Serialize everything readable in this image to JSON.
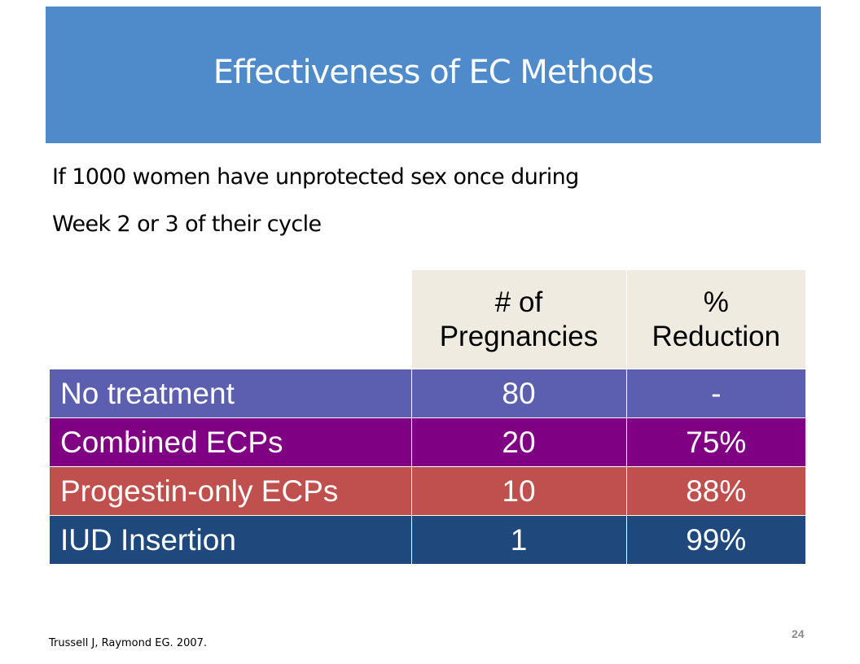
{
  "slide": {
    "title": "Effectiveness of EC Methods",
    "subtitle_lines": [
      "If 1000 women have unprotected sex once during",
      "Week 2 or 3 of their cycle"
    ],
    "table": {
      "header": {
        "col2_lines": [
          "# of",
          "Pregnancies"
        ],
        "col3_lines": [
          "%",
          "Reduction"
        ]
      },
      "rows": [
        {
          "method": "No treatment",
          "pregnancies": "80",
          "reduction": "-",
          "color": "#5b5fae"
        },
        {
          "method": "Combined ECPs",
          "pregnancies": "20",
          "reduction": "75%",
          "color": "#7f0083"
        },
        {
          "method": "Progestin-only ECPs",
          "pregnancies": "10",
          "reduction": "88%",
          "color": "#c0504d"
        },
        {
          "method": "IUD Insertion",
          "pregnancies": "1",
          "reduction": "99%",
          "color": "#1f497d"
        }
      ]
    },
    "footnote": "Trussell J, Raymond EG. 2007.",
    "page_number": "24"
  },
  "colors": {
    "title_bar": "#4f8acb",
    "header_cell": "#efebe0",
    "page_number": "#8c8c8c"
  }
}
